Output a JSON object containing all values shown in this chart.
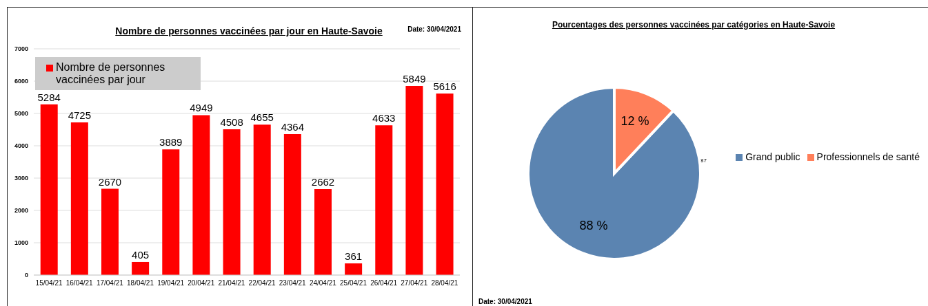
{
  "chart_data": [
    {
      "type": "bar",
      "title": "Nombre de personnes vaccinées par jour en Haute-Savoie",
      "annotations": [
        "Date: 30/04/2021"
      ],
      "categories": [
        "15/04/21",
        "16/04/21",
        "17/04/21",
        "18/04/21",
        "19/04/21",
        "20/04/21",
        "21/04/21",
        "22/04/21",
        "23/04/21",
        "24/04/21",
        "25/04/21",
        "26/04/21",
        "27/04/21",
        "28/04/21"
      ],
      "series": [
        {
          "name": "Nombre de personnes vaccinées par jour",
          "color": "#ff0000",
          "values": [
            5284,
            4725,
            2670,
            405,
            3889,
            4949,
            4508,
            4655,
            4364,
            2662,
            361,
            4633,
            5849,
            5616
          ]
        }
      ],
      "ylim": [
        0,
        7000
      ],
      "yticks": [
        0,
        1000,
        2000,
        3000,
        4000,
        5000,
        6000,
        7000
      ],
      "grid": "y",
      "legend": "top left",
      "data_labels": true
    },
    {
      "type": "pie",
      "title": "Pourcentages des personnes vaccinées par catégories en Haute-Savoie",
      "annotations": [
        "87",
        "Date: 30/04/2021"
      ],
      "categories": [
        "Grand public",
        "Professionnels de santé"
      ],
      "values": [
        88,
        12
      ],
      "colors": [
        "#5b84b1",
        "#ff7f5a"
      ],
      "value_labels": [
        "88 %",
        "12 %"
      ],
      "legend": "right"
    }
  ]
}
